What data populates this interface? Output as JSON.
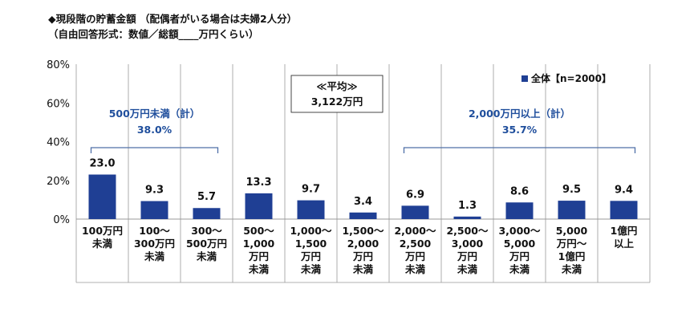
{
  "header": {
    "title": "◆現段階の貯蓄金額 （配偶者がいる場合は夫婦2人分）",
    "subtitle": "（自由回答形式：数値／総額____万円くらい）"
  },
  "colors": {
    "bar": "#1f3f94",
    "annotation": "#1f4e9c",
    "bracket": "#4f6fa8",
    "grid": "#999999"
  },
  "chart_data": {
    "type": "bar",
    "yticks": [
      "0%",
      "20%",
      "40%",
      "60%",
      "80%"
    ],
    "ylim": [
      0,
      80
    ],
    "categories": [
      [
        "100万円",
        "未満"
      ],
      [
        "100～",
        "300万円",
        "未満"
      ],
      [
        "300～",
        "500万円",
        "未満"
      ],
      [
        "500～",
        "1,000",
        "万円",
        "未満"
      ],
      [
        "1,000～",
        "1,500",
        "万円",
        "未満"
      ],
      [
        "1,500～",
        "2,000",
        "万円",
        "未満"
      ],
      [
        "2,000～",
        "2,500",
        "万円",
        "未満"
      ],
      [
        "2,500～",
        "3,000",
        "万円",
        "未満"
      ],
      [
        "3,000～",
        "5,000",
        "万円",
        "未満"
      ],
      [
        "5,000",
        "万円～",
        "1億円",
        "未満"
      ],
      [
        "1億円",
        "以上"
      ]
    ],
    "values": [
      23.0,
      9.3,
      5.7,
      13.3,
      9.7,
      3.4,
      6.9,
      1.3,
      8.6,
      9.5,
      9.4
    ],
    "value_labels": [
      "23.0",
      "9.3",
      "5.7",
      "13.3",
      "9.7",
      "3.4",
      "6.9",
      "1.3",
      "8.6",
      "9.5",
      "9.4"
    ],
    "legend": {
      "label": "全体【n=2000】",
      "placement": "top-right"
    },
    "average": {
      "label": "≪平均≫",
      "value": "3,122万円"
    },
    "groups": [
      {
        "label": "500万円未満（計）",
        "value": "38.0%",
        "from": 0,
        "to": 2
      },
      {
        "label": "2,000万円以上（計）",
        "value": "35.7%",
        "from": 6,
        "to": 10
      }
    ]
  }
}
